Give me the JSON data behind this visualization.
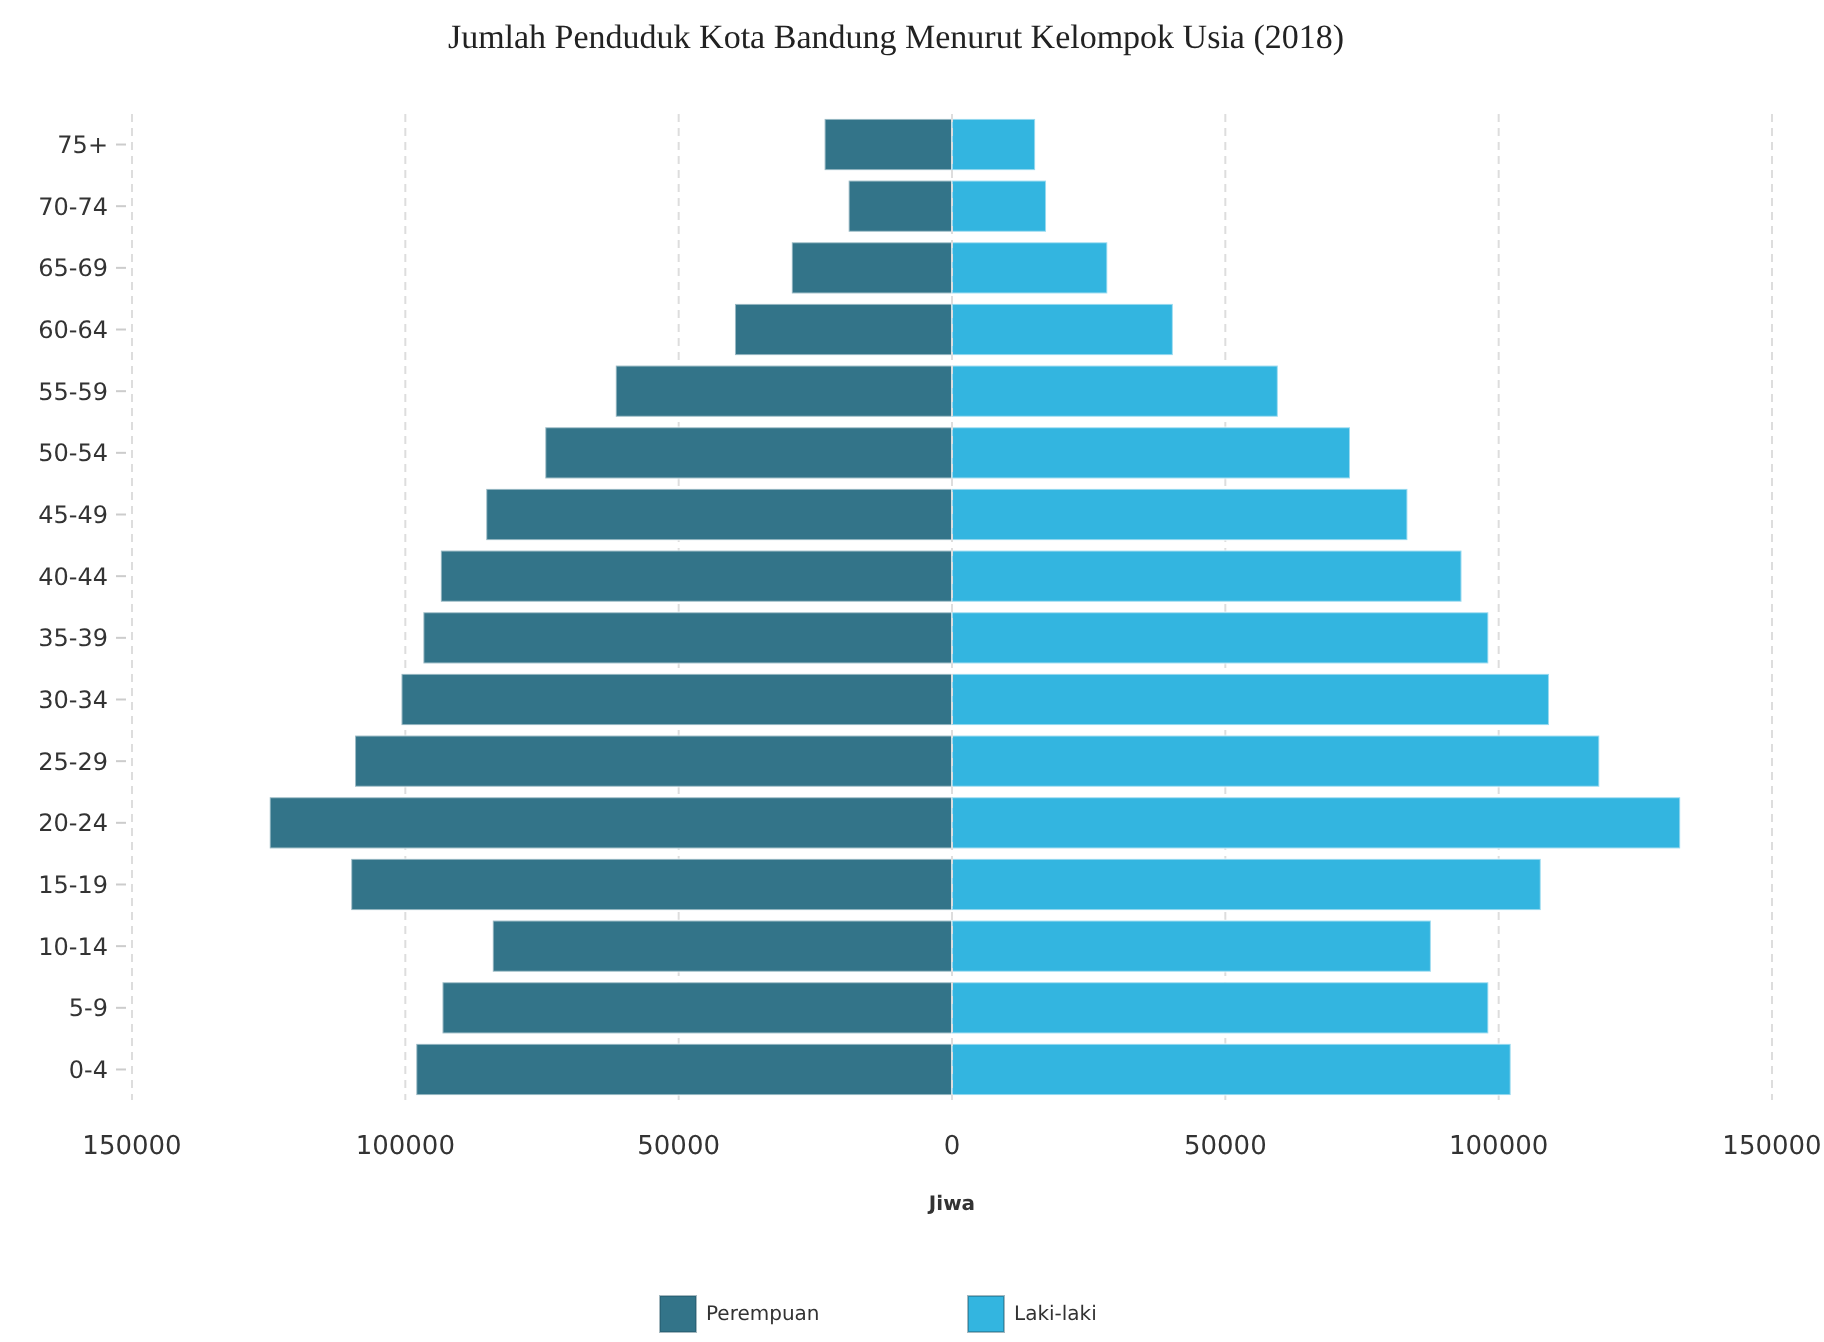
{
  "chart_data": {
    "type": "bar",
    "orientation": "horizontal",
    "stacked": true,
    "title": "Jumlah Penduduk Kota Bandung Menurut Kelompok Usia (2018)",
    "xlabel": "Jiwa",
    "categories": [
      "75+",
      "70-74",
      "65-69",
      "60-64",
      "55-59",
      "50-54",
      "45-49",
      "40-44",
      "35-39",
      "30-34",
      "25-29",
      "20-24",
      "15-19",
      "10-14",
      "5-9",
      "0-4"
    ],
    "series": [
      {
        "name": "Perempuan",
        "color": "#337489",
        "values": [
          -23300,
          -18900,
          -29300,
          -39700,
          -61500,
          -74400,
          -85200,
          -93500,
          -96700,
          -100700,
          -109200,
          -124800,
          -109900,
          -84000,
          -93200,
          -98000
        ]
      },
      {
        "name": "Laki-laki",
        "color": "#33b5e0",
        "values": [
          15200,
          17200,
          28400,
          40400,
          59600,
          72800,
          83300,
          93200,
          98100,
          109200,
          118400,
          133200,
          107700,
          87600,
          98100,
          102200
        ]
      }
    ],
    "xlim": [
      -150000,
      150000
    ],
    "xticks": [
      {
        "value": -150000,
        "label": "150000"
      },
      {
        "value": -100000,
        "label": "100000"
      },
      {
        "value": -50000,
        "label": "50000"
      },
      0,
      50000,
      100000,
      150000
    ],
    "grid": "x",
    "legend": "bottom"
  }
}
